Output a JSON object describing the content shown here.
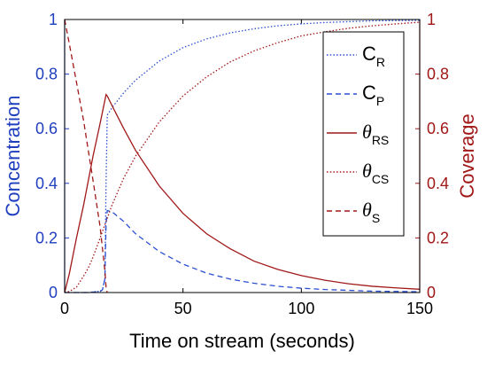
{
  "chart_data": {
    "type": "line",
    "xlabel": "Time on stream (seconds)",
    "ylabel_left": "Concentration",
    "ylabel_right": "Coverage",
    "xlim": [
      0,
      150
    ],
    "ylim_left": [
      0,
      1
    ],
    "ylim_right": [
      0,
      1
    ],
    "x_ticks": [
      "0",
      "50",
      "100",
      "150"
    ],
    "y_ticks_left": [
      "0",
      "0.2",
      "0.4",
      "0.6",
      "0.8",
      "1"
    ],
    "y_ticks_right": [
      "0",
      "0.2",
      "0.4",
      "0.6",
      "0.8",
      "1"
    ],
    "grid": false,
    "legend_position": "top-right",
    "colors": {
      "left_axis": "#1f3fbf",
      "right_axis": "#a01818",
      "frame": "#000000"
    },
    "series": [
      {
        "name": "C",
        "subscript": "R",
        "axis": "left",
        "style": "dotted",
        "color": "#2a4fd0",
        "x": [
          0,
          5,
          10,
          15,
          16,
          17,
          17.5,
          18,
          20,
          25,
          30,
          40,
          50,
          60,
          70,
          80,
          90,
          100,
          110,
          120,
          130,
          140,
          150
        ],
        "y": [
          0,
          0,
          0,
          0.005,
          0.012,
          0.05,
          0.4,
          0.65,
          0.677,
          0.732,
          0.778,
          0.848,
          0.897,
          0.929,
          0.951,
          0.966,
          0.977,
          0.984,
          0.989,
          0.992,
          0.995,
          0.996,
          0.997
        ]
      },
      {
        "name": "C",
        "subscript": "P",
        "axis": "left",
        "style": "dashed",
        "color": "#2a4fd0",
        "x": [
          0,
          5,
          10,
          15,
          16,
          17,
          17.5,
          18,
          20,
          25,
          30,
          40,
          50,
          60,
          70,
          80,
          90,
          100,
          110,
          120,
          130,
          140,
          150
        ],
        "y": [
          0,
          0,
          0,
          0.004,
          0.01,
          0.05,
          0.25,
          0.3,
          0.296,
          0.26,
          0.215,
          0.15,
          0.104,
          0.071,
          0.049,
          0.034,
          0.023,
          0.016,
          0.011,
          0.008,
          0.005,
          0.004,
          0.003
        ]
      },
      {
        "name": "θ",
        "subscript": "RS",
        "axis": "right",
        "style": "solid",
        "color": "#a01818",
        "x": [
          0,
          2,
          5,
          8,
          10,
          12,
          15,
          17.5,
          18,
          20,
          25,
          30,
          40,
          50,
          60,
          70,
          80,
          90,
          100,
          110,
          120,
          130,
          140,
          150
        ],
        "y": [
          0,
          0.07,
          0.2,
          0.32,
          0.41,
          0.5,
          0.62,
          0.725,
          0.72,
          0.685,
          0.6,
          0.52,
          0.39,
          0.29,
          0.215,
          0.16,
          0.115,
          0.085,
          0.062,
          0.045,
          0.032,
          0.023,
          0.017,
          0.012
        ]
      },
      {
        "name": "θ",
        "subscript": "CS",
        "axis": "right",
        "style": "dotted",
        "color": "#a01818",
        "x": [
          0,
          2,
          5,
          8,
          10,
          12,
          15,
          17.5,
          20,
          25,
          30,
          40,
          50,
          60,
          70,
          80,
          90,
          100,
          110,
          120,
          130,
          140,
          150
        ],
        "y": [
          0,
          0.004,
          0.02,
          0.06,
          0.09,
          0.13,
          0.2,
          0.26,
          0.32,
          0.42,
          0.5,
          0.625,
          0.72,
          0.79,
          0.845,
          0.885,
          0.915,
          0.94,
          0.955,
          0.968,
          0.977,
          0.984,
          0.99
        ]
      },
      {
        "name": "θ",
        "subscript": "S",
        "axis": "right",
        "style": "dashed",
        "color": "#a01818",
        "x": [
          0,
          2,
          5,
          8,
          10,
          12,
          15,
          17,
          17.5,
          18
        ],
        "y": [
          1,
          0.91,
          0.77,
          0.63,
          0.52,
          0.41,
          0.24,
          0.08,
          0.02,
          0
        ]
      }
    ]
  }
}
